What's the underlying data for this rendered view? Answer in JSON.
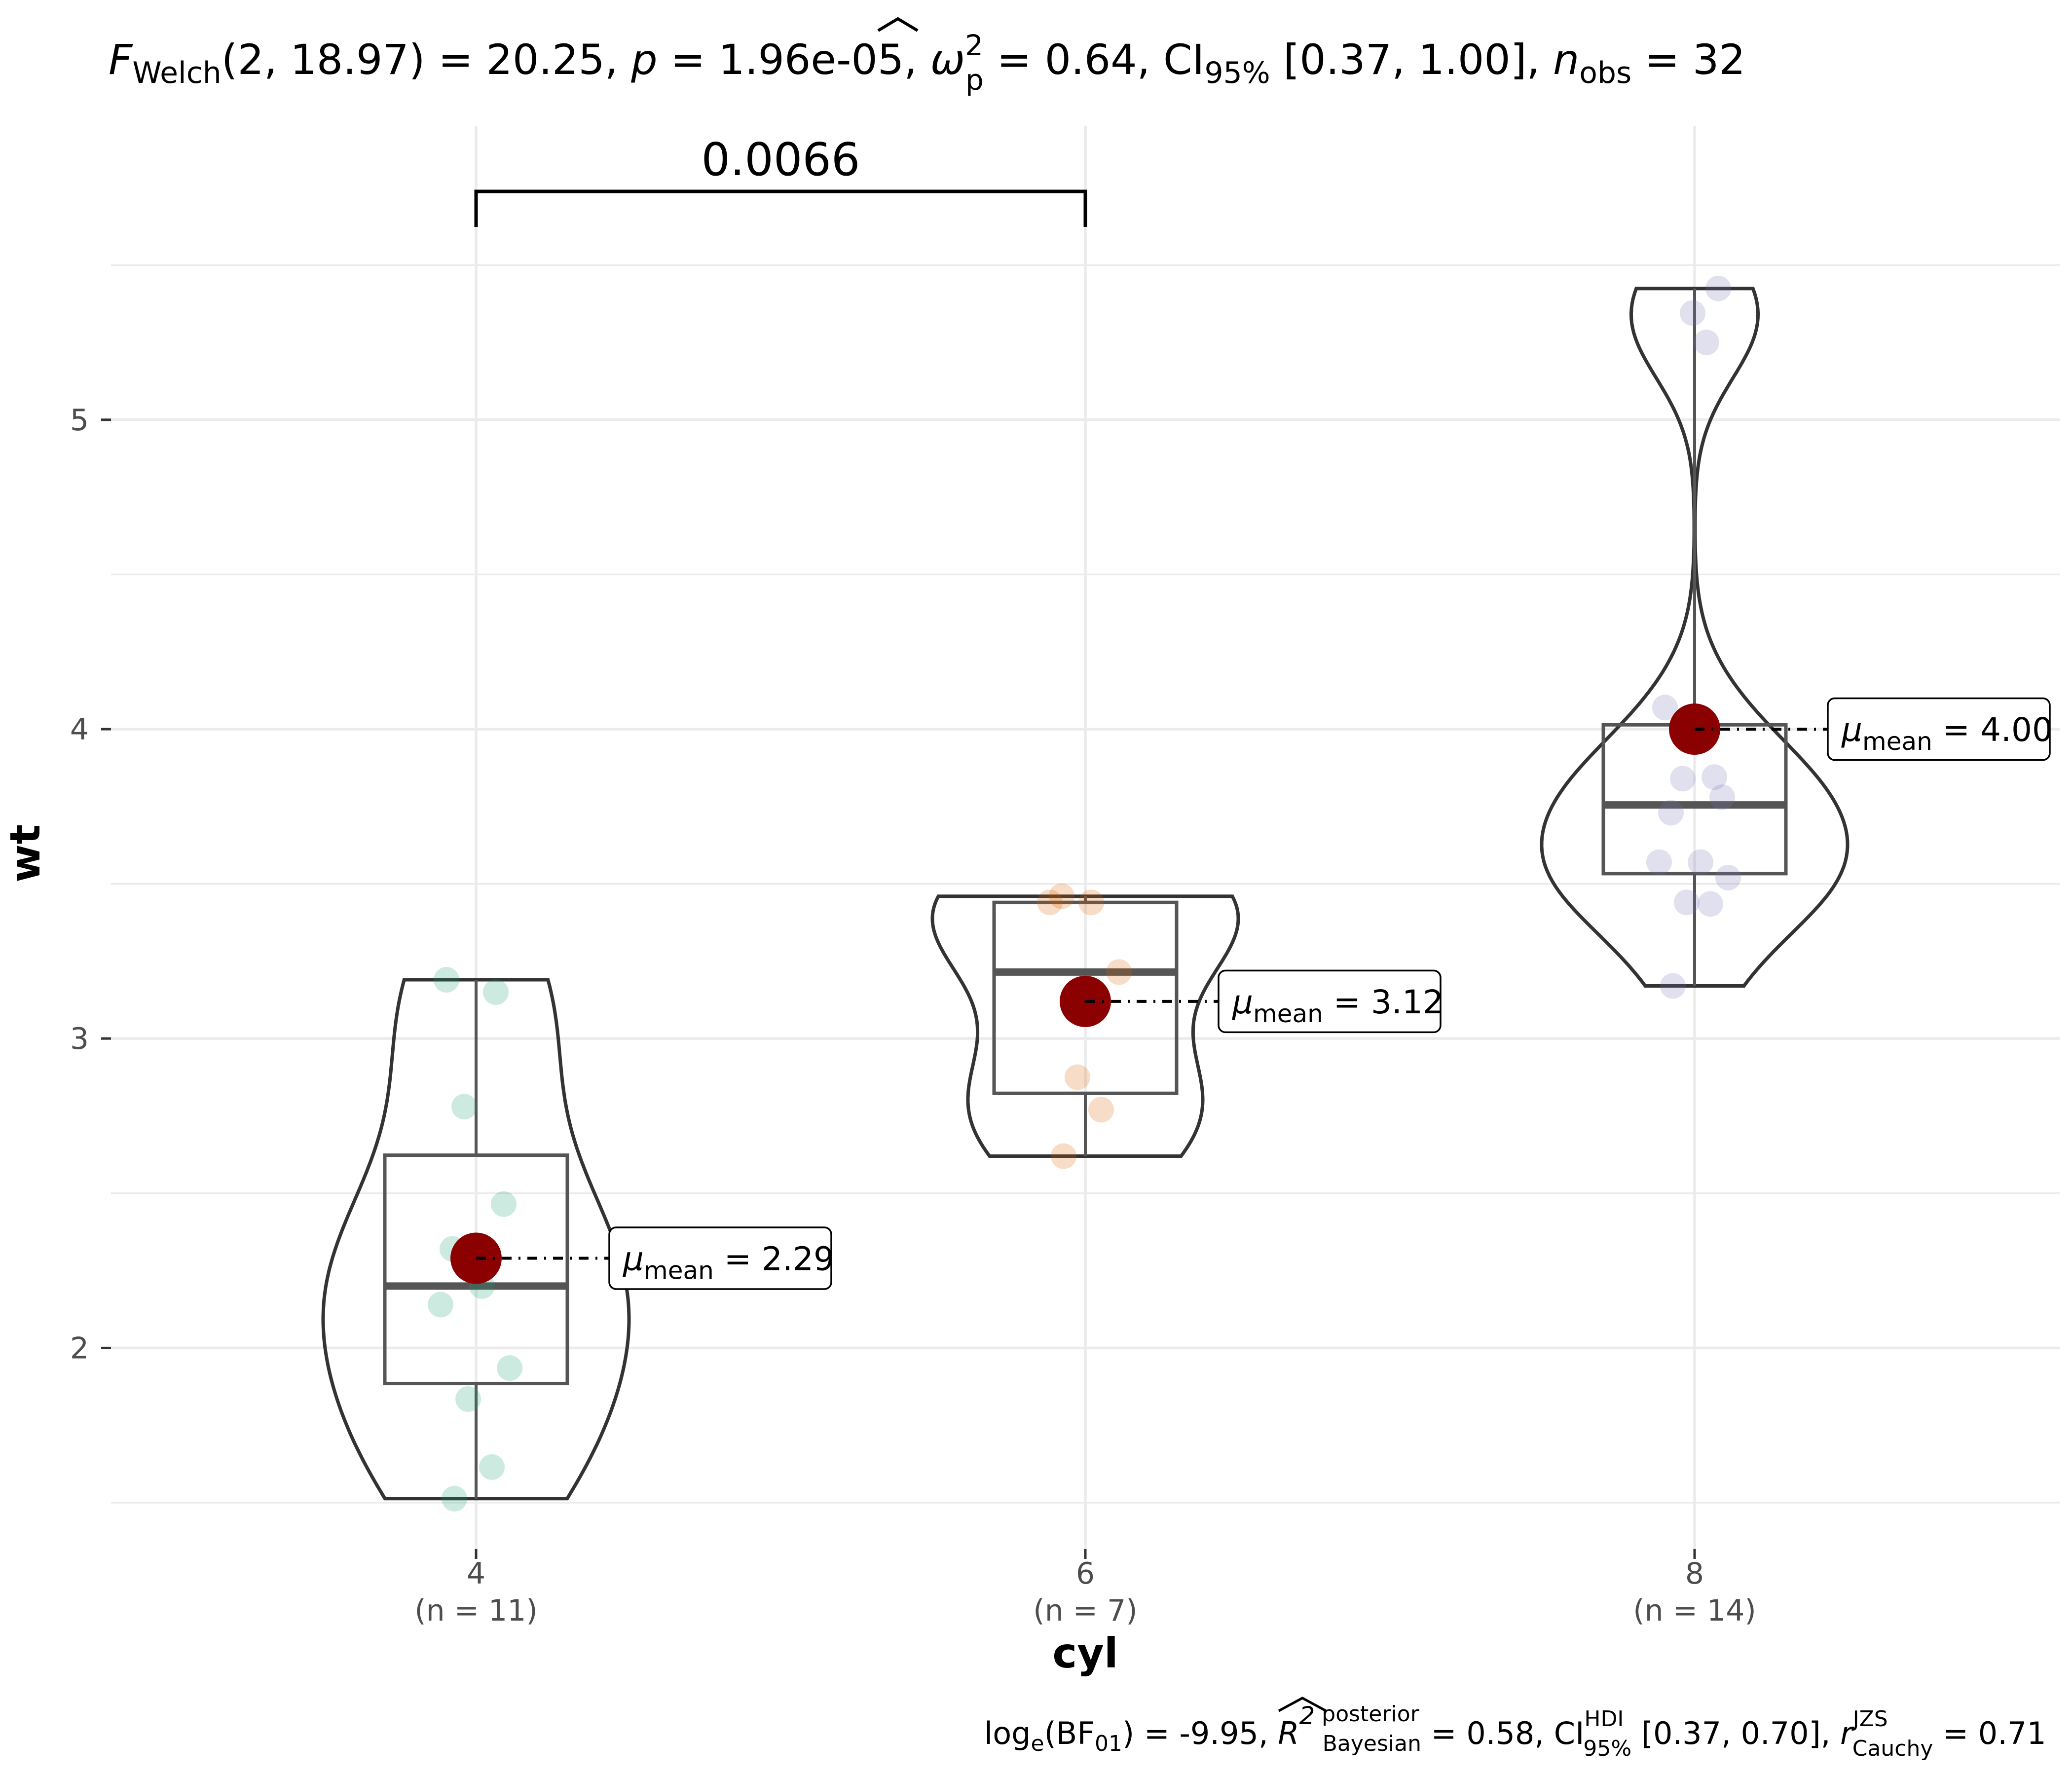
{
  "chart_data": {
    "type": "violin-box-scatter",
    "title": "F_Welch(2, 18.97) = 20.25, p = 1.96e-05, ω̂²_p = 0.64, CI95% [0.37, 1.00], n_obs = 32",
    "caption": "log_e(BF01) = -9.95, R̂²_Bayesian posterior = 0.58, CI95% HDI [0.37, 0.70], r Cauchy JZS = 0.71",
    "xlabel": "cyl",
    "ylabel": "wt",
    "ylim": [
      1.35,
      5.95
    ],
    "yticks": [
      2,
      3,
      4,
      5
    ],
    "ytick_labels": [
      "2",
      "3",
      "4",
      "5"
    ],
    "categories": [
      "4",
      "6",
      "8"
    ],
    "category_counts": [
      "(n = 11)",
      "(n = 7)",
      "(n = 14)"
    ],
    "colors": {
      "4": "#1b9e77",
      "6": "#d95f02",
      "8": "#7570b3",
      "mean": "#8b0000"
    },
    "groups": [
      {
        "name": "4",
        "points": [
          1.513,
          1.615,
          1.835,
          1.935,
          2.14,
          2.2,
          2.32,
          2.465,
          2.78,
          3.15,
          3.19
        ],
        "box": {
          "q1": 1.885,
          "median": 2.2,
          "q3": 2.623,
          "lower": 1.513,
          "upper": 3.19
        },
        "mean": 2.29,
        "mean_label": "2.29"
      },
      {
        "name": "6",
        "points": [
          2.62,
          2.77,
          2.875,
          3.215,
          3.44,
          3.44,
          3.46
        ],
        "box": {
          "q1": 2.823,
          "median": 3.215,
          "q3": 3.44,
          "lower": 2.62,
          "upper": 3.46
        },
        "mean": 3.12,
        "mean_label": "3.12"
      },
      {
        "name": "8",
        "points": [
          3.17,
          3.435,
          3.44,
          3.52,
          3.57,
          3.57,
          3.73,
          3.78,
          3.84,
          3.845,
          4.07,
          5.25,
          5.345,
          5.424
        ],
        "box": {
          "q1": 3.533,
          "median": 3.755,
          "q3": 4.014,
          "lower": 3.17,
          "upper": 5.424
        },
        "mean": 4.0,
        "mean_label": "4.00"
      }
    ],
    "comparisons": [
      {
        "groups": [
          "4",
          "6"
        ],
        "label": "0.0066"
      }
    ]
  }
}
